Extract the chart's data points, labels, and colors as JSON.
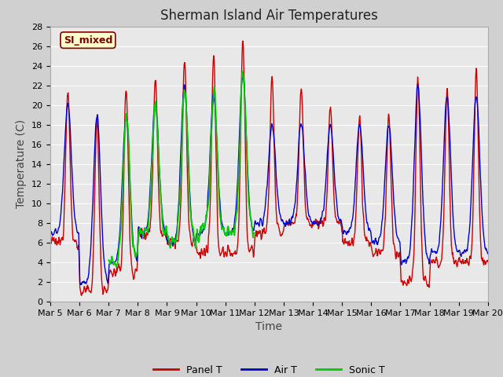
{
  "title": "Sherman Island Air Temperatures",
  "xlabel": "Time",
  "ylabel": "Temperature (C)",
  "ylim": [
    0,
    28
  ],
  "xlim": [
    0,
    15
  ],
  "x_tick_labels": [
    "Mar 5",
    "Mar 6",
    "Mar 7",
    "Mar 8",
    "Mar 9",
    "Mar 10",
    "Mar 11",
    "Mar 12",
    "Mar 13",
    "Mar 14",
    "Mar 15",
    "Mar 16",
    "Mar 17",
    "Mar 18",
    "Mar 19",
    "Mar 20"
  ],
  "x_tick_positions": [
    0,
    1,
    2,
    3,
    4,
    5,
    6,
    7,
    8,
    9,
    10,
    11,
    12,
    13,
    14,
    15
  ],
  "legend_labels": [
    "Panel T",
    "Air T",
    "Sonic T"
  ],
  "panel_color": "#cc0000",
  "air_color": "#0000cc",
  "sonic_color": "#00cc00",
  "fig_bg_color": "#d0d0d0",
  "plot_bg_color": "#e8e8e8",
  "grid_color": "#ffffff",
  "annotation_text": "SI_mixed",
  "annotation_bg": "#ffffcc",
  "annotation_fg": "#800000",
  "title_fontsize": 12,
  "axis_label_fontsize": 10,
  "tick_fontsize": 8,
  "legend_fontsize": 9,
  "line_width": 1.0,
  "yticks": [
    0,
    2,
    4,
    6,
    8,
    10,
    12,
    14,
    16,
    18,
    20,
    22,
    24,
    26,
    28
  ]
}
